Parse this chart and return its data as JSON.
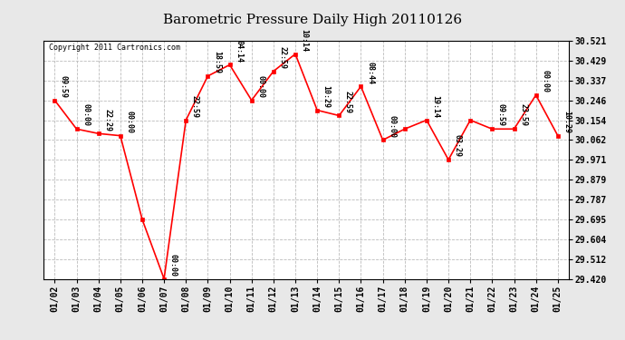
{
  "title": "Barometric Pressure Daily High 20110126",
  "copyright": "Copyright 2011 Cartronics.com",
  "dates": [
    "01/02",
    "01/03",
    "01/04",
    "01/05",
    "01/06",
    "01/07",
    "01/08",
    "01/09",
    "01/10",
    "01/11",
    "01/12",
    "01/13",
    "01/14",
    "01/15",
    "01/16",
    "01/17",
    "01/18",
    "01/19",
    "01/20",
    "01/21",
    "01/22",
    "01/23",
    "01/24",
    "01/25"
  ],
  "values": [
    30.246,
    30.113,
    30.092,
    30.082,
    29.695,
    29.42,
    30.154,
    30.358,
    30.41,
    30.246,
    30.38,
    30.46,
    30.2,
    30.175,
    30.31,
    30.062,
    30.113,
    30.154,
    29.971,
    30.154,
    30.113,
    30.113,
    30.27,
    30.082
  ],
  "time_labels": [
    "09:59",
    "00:00",
    "22:29",
    "00:00",
    "",
    "00:00",
    "22:59",
    "18:59",
    "04:14",
    "00:00",
    "22:59",
    "10:14",
    "10:29",
    "22:59",
    "08:44",
    "00:00",
    "",
    "19:14",
    "03:29",
    "",
    "09:59",
    "23:59",
    "00:00",
    "10:29"
  ],
  "ylim_min": 29.42,
  "ylim_max": 30.521,
  "yticks": [
    30.521,
    30.429,
    30.337,
    30.246,
    30.154,
    30.062,
    29.971,
    29.879,
    29.787,
    29.695,
    29.604,
    29.512,
    29.42
  ],
  "line_color": "red",
  "marker_color": "red",
  "background_color": "#e8e8e8",
  "plot_bg_color": "white",
  "grid_color": "#bbbbbb",
  "title_fontsize": 11,
  "tick_fontsize": 7,
  "annotation_fontsize": 6
}
